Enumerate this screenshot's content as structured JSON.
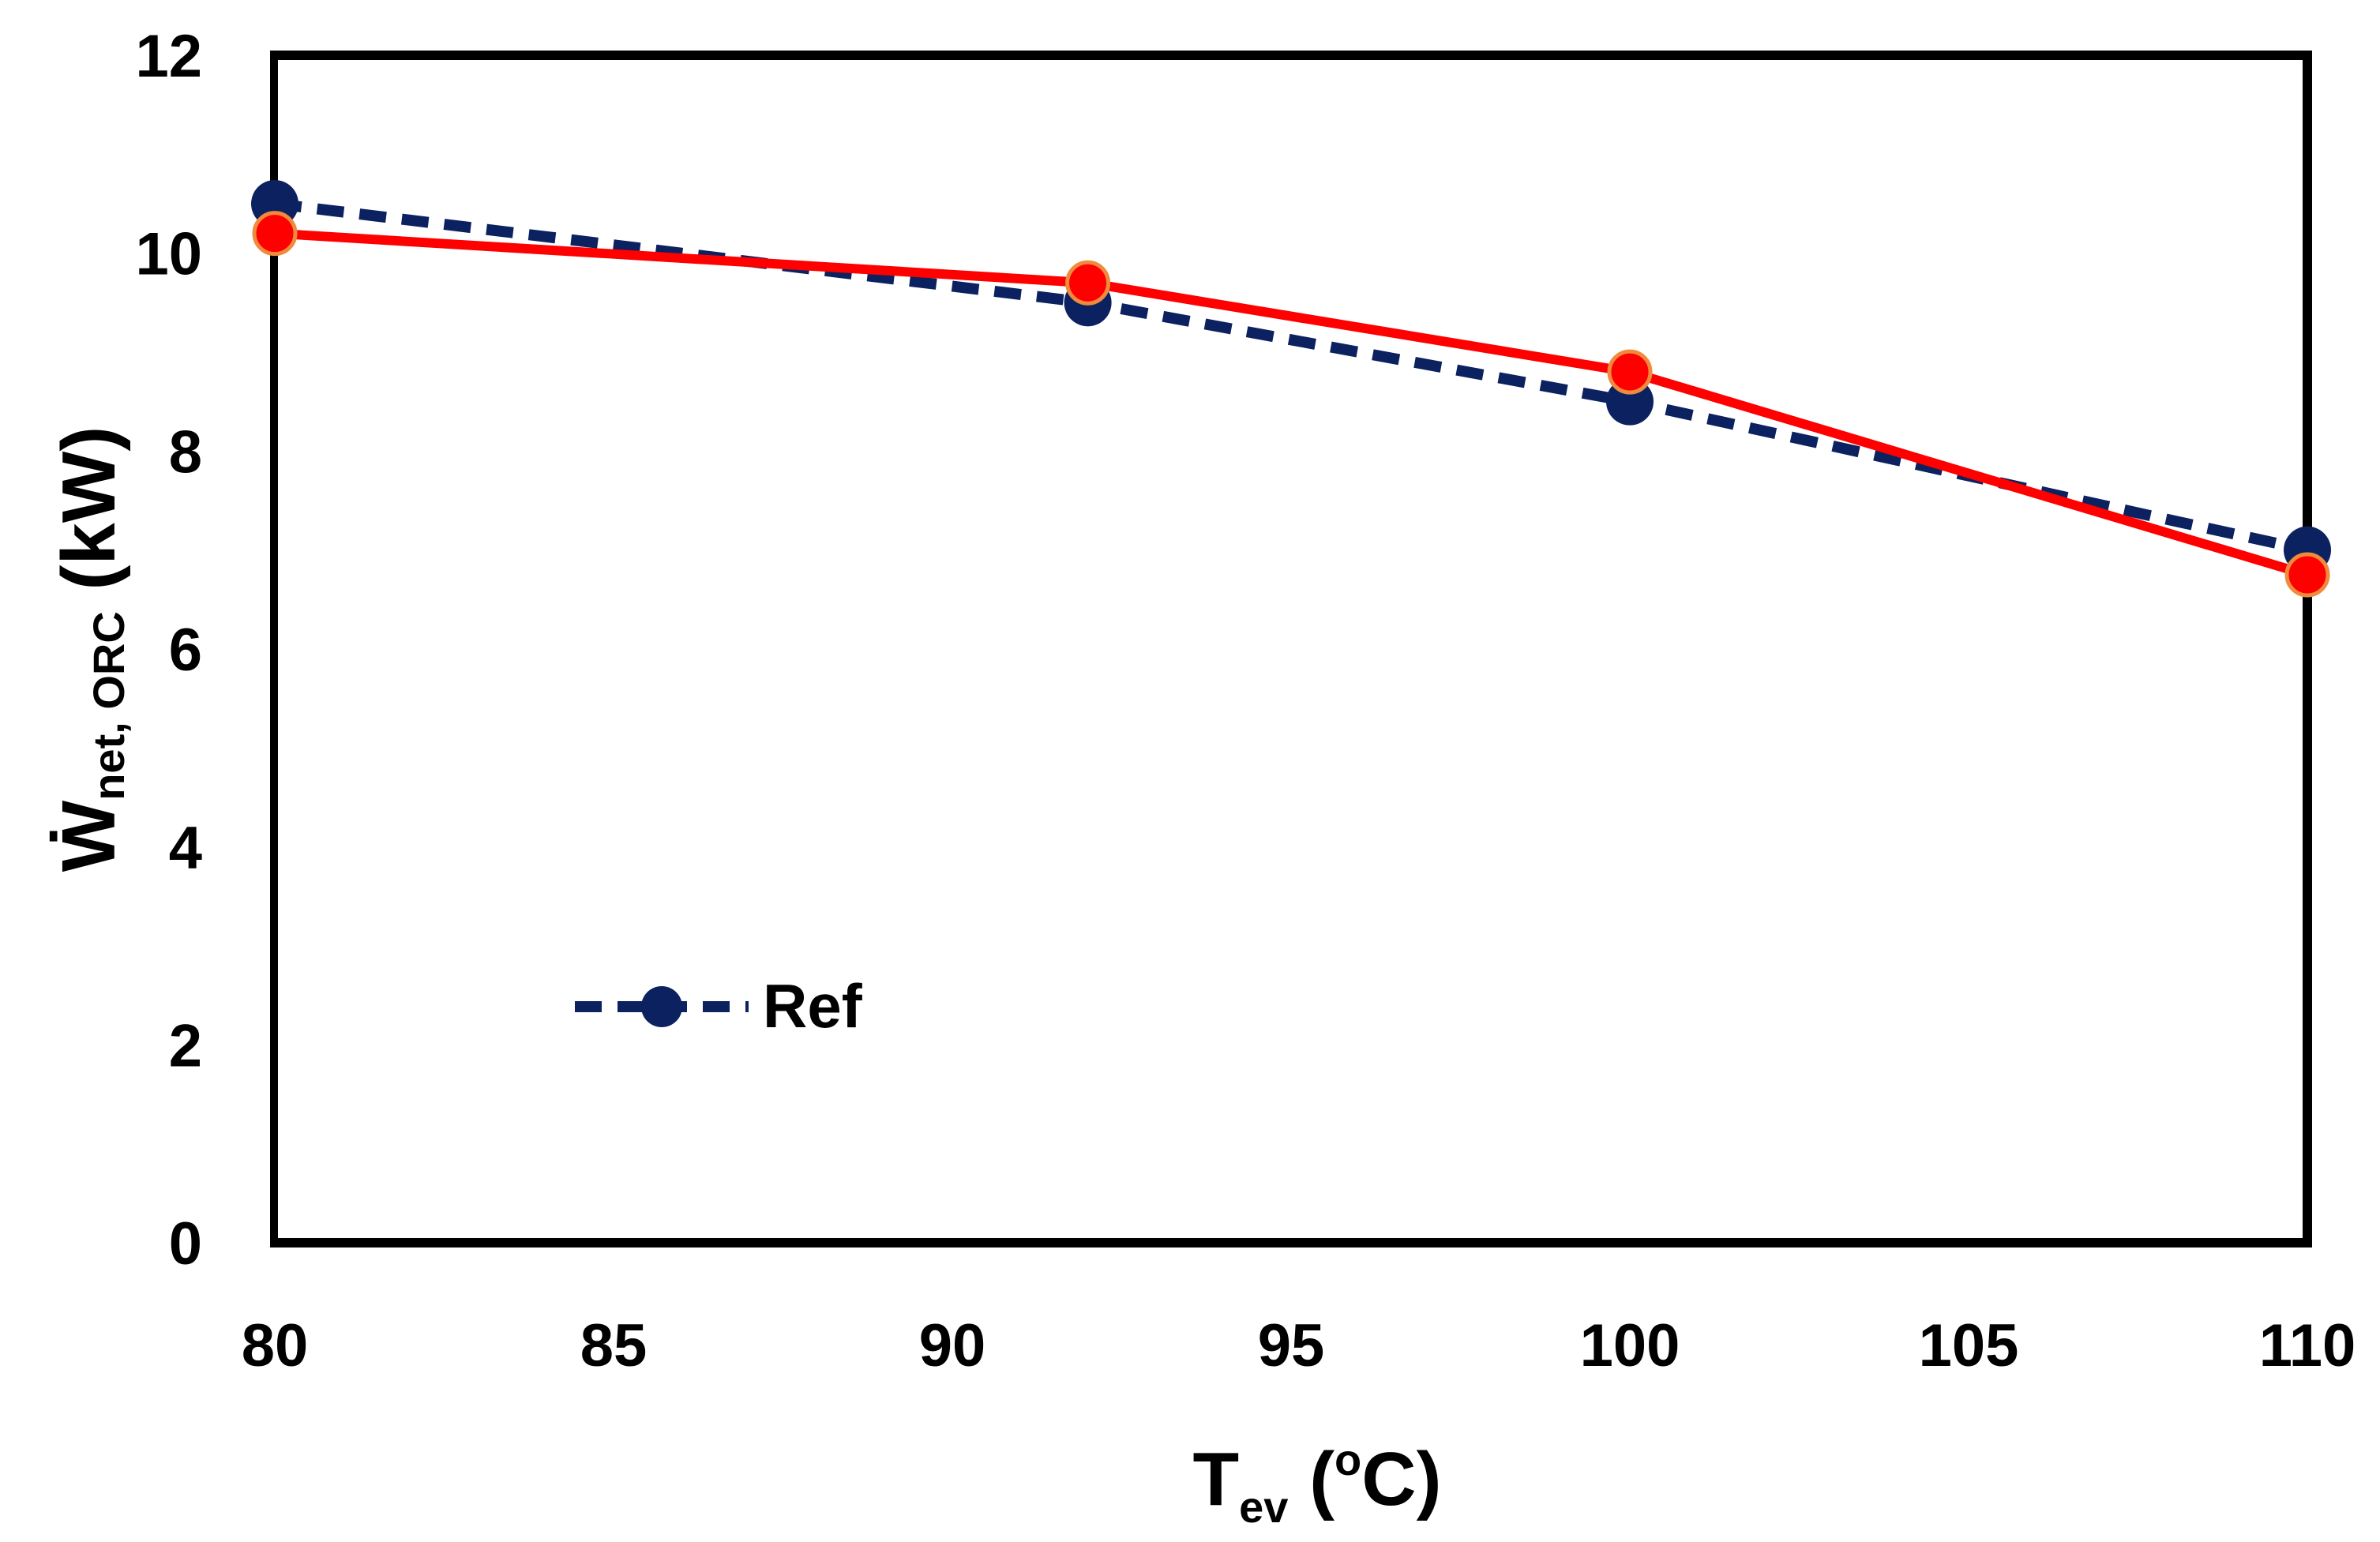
{
  "chart_data": {
    "type": "line",
    "title": "",
    "xlabel": {
      "main": "T",
      "sub": "ev",
      "unit_open": " (",
      "unit_sup": "o",
      "unit_close": "C)"
    },
    "ylabel": {
      "main": "Ẇ",
      "sub": "net, ORC",
      "unit": " (kW)"
    },
    "xlim": [
      80,
      110
    ],
    "ylim": [
      0,
      12
    ],
    "xticks": [
      "80",
      "85",
      "90",
      "95",
      "100",
      "105",
      "110"
    ],
    "yticks": [
      "0",
      "2",
      "4",
      "6",
      "8",
      "10",
      "12"
    ],
    "grid": false,
    "legend_position": "lower-left",
    "series": [
      {
        "name": "Ref",
        "x": [
          80,
          92,
          100,
          110
        ],
        "y": [
          10.5,
          9.5,
          8.5,
          7.0
        ],
        "line_color": "#0c2160",
        "marker_color": "#0c2160",
        "line_style": "dashed",
        "show_in_legend": true
      },
      {
        "name": "",
        "x": [
          80,
          92,
          100,
          110
        ],
        "y": [
          10.2,
          9.7,
          8.8,
          6.75
        ],
        "line_color": "#ff0000",
        "marker_color": "#ff0000",
        "marker_edge_color": "#f08a3c",
        "line_style": "solid",
        "show_in_legend": false
      }
    ]
  }
}
